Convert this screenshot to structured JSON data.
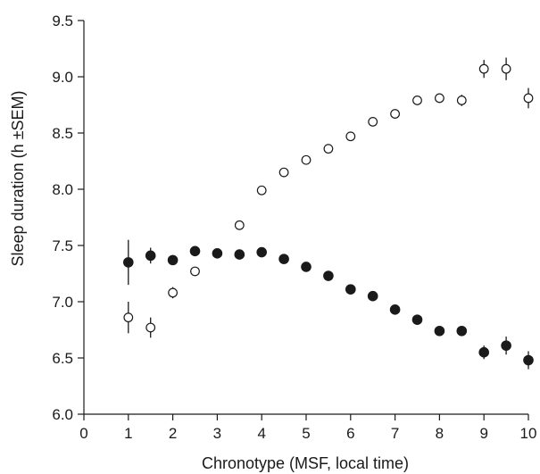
{
  "chart_data": {
    "type": "scatter",
    "title": "",
    "xlabel": "Chronotype (MSF, local time)",
    "ylabel": "Sleep duration (h ±SEM)",
    "xlim": [
      0,
      10
    ],
    "ylim": [
      6.0,
      9.5
    ],
    "xticks": [
      "0",
      "1",
      "2",
      "3",
      "4",
      "5",
      "6",
      "7",
      "8",
      "9",
      "10"
    ],
    "yticks": [
      "6.0",
      "6.5",
      "7.0",
      "7.5",
      "8.0",
      "8.5",
      "9.0",
      "9.5"
    ],
    "grid": false,
    "legend": "none",
    "series": [
      {
        "marker": "open-circle",
        "color": "#1a1a1a",
        "x": [
          1,
          1.5,
          2,
          2.5,
          3,
          3.5,
          4,
          4.5,
          5,
          5.5,
          6,
          6.5,
          7,
          7.5,
          8,
          8.5,
          9,
          9.5,
          10
        ],
        "y": [
          6.86,
          6.77,
          7.08,
          7.27,
          null,
          7.68,
          7.99,
          8.15,
          8.26,
          8.36,
          8.47,
          8.6,
          8.67,
          8.79,
          8.81,
          8.79,
          9.07,
          9.07,
          8.81
        ],
        "sem": [
          0.14,
          0.09,
          0.05,
          0.0,
          null,
          0.0,
          0.0,
          0.0,
          0.0,
          0.0,
          0.0,
          0.0,
          0.0,
          0.0,
          0.04,
          0.05,
          0.08,
          0.1,
          0.09
        ]
      },
      {
        "marker": "filled-circle",
        "color": "#1a1a1a",
        "x": [
          1,
          1.5,
          2,
          2.5,
          3,
          3.5,
          4,
          4.5,
          5,
          5.5,
          6,
          6.5,
          7,
          7.5,
          8,
          8.5,
          9,
          9.5,
          10
        ],
        "y": [
          7.35,
          7.41,
          7.37,
          7.45,
          7.43,
          7.42,
          7.44,
          7.38,
          7.31,
          7.23,
          7.11,
          7.05,
          6.93,
          6.84,
          6.74,
          6.74,
          6.55,
          6.61,
          6.48
        ],
        "sem": [
          0.2,
          0.07,
          0.03,
          0.0,
          0.0,
          0.0,
          0.0,
          0.0,
          0.0,
          0.0,
          0.0,
          0.0,
          0.0,
          0.0,
          0.0,
          0.04,
          0.06,
          0.08,
          0.08
        ]
      }
    ]
  }
}
